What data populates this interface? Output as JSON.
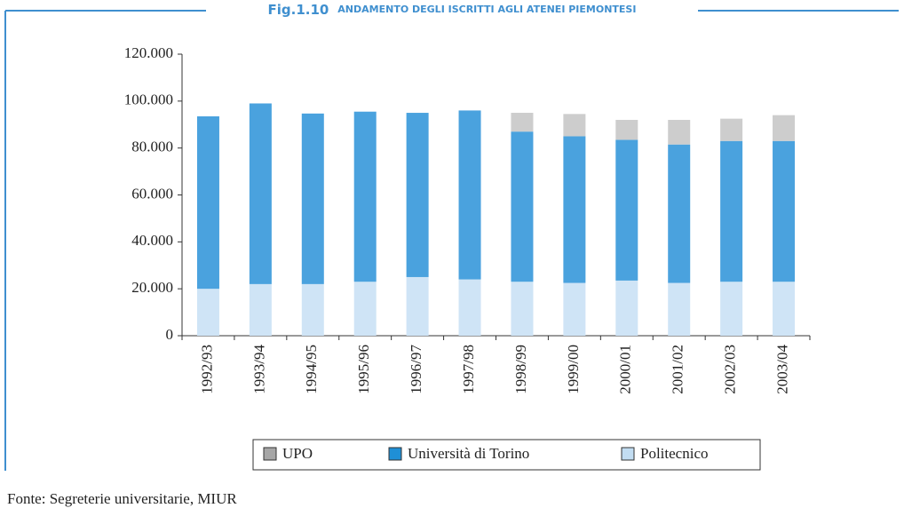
{
  "chart_data": {
    "type": "stacked_bar",
    "title": "Fig.1.10",
    "subtitle": "ANDAMENTO DEGLI ISCRITTI AGLI ATENEI PIEMONTESI",
    "source": "Fonte: Segreterie universitarie, MIUR",
    "categories": [
      "1992/93",
      "1993/94",
      "1994/95",
      "1995/96",
      "1996/97",
      "1997/98",
      "1998/99",
      "1999/00",
      "2000/01",
      "2001/02",
      "2002/03",
      "2003/04"
    ],
    "series": [
      {
        "name": "Politecnico",
        "color": "#cfe4f6",
        "values": [
          20000,
          22000,
          22000,
          23000,
          25000,
          24000,
          23000,
          22500,
          23500,
          22500,
          23000,
          23000
        ]
      },
      {
        "name": "Università di Torino",
        "color": "#4aa2de",
        "values": [
          73500,
          77000,
          72700,
          72500,
          70000,
          72000,
          64000,
          62500,
          60000,
          59000,
          60000,
          60000
        ]
      },
      {
        "name": "UPO",
        "color": "#cdcdcd",
        "values": [
          0,
          0,
          0,
          0,
          0,
          0,
          8000,
          9500,
          8500,
          10500,
          9500,
          11000
        ]
      }
    ],
    "legend_order": [
      2,
      1,
      0
    ],
    "legend_colors": [
      "#c2ddf2",
      "#1f8fd6",
      "#a6a6a6"
    ],
    "ylim": [
      0,
      120000
    ],
    "yticks": [
      0,
      {
        "value": 20000,
        "label": "20.000"
      },
      {
        "value": 40000,
        "label": "40.000"
      },
      {
        "value": 60000,
        "label": "60.000"
      },
      {
        "value": 80000,
        "label": "80.000"
      },
      {
        "value": 100000,
        "label": "100.000"
      },
      {
        "value": 120000,
        "label": "120.000"
      }
    ]
  }
}
